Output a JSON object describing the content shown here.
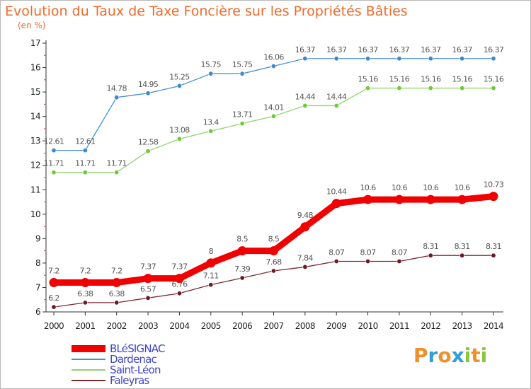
{
  "title": "Evolution du Taux de Taxe Foncière sur les Propriétés Bâties",
  "subtitle": "(en %)",
  "logo": {
    "letters": [
      {
        "char": "P",
        "color": "#f0902a"
      },
      {
        "char": "r",
        "color": "#2e9fd8"
      },
      {
        "char": "o",
        "color": "#f0902a"
      },
      {
        "char": "x",
        "color": "#2e9fd8"
      },
      {
        "char": "i",
        "color": "#8cc63f"
      },
      {
        "char": "t",
        "color": "#f0902a"
      },
      {
        "char": "i",
        "color": "#8cc63f"
      }
    ]
  },
  "chart_data": {
    "type": "line",
    "x": [
      "2000",
      "2001",
      "2002",
      "2003",
      "2004",
      "2005",
      "2006",
      "2007",
      "2008",
      "2009",
      "2010",
      "2011",
      "2012",
      "2013",
      "2014"
    ],
    "ylim": [
      6,
      17
    ],
    "yticks": [
      6,
      7,
      8,
      9,
      10,
      11,
      12,
      13,
      14,
      15,
      16,
      17
    ],
    "grid": false,
    "legend": "bottom-left",
    "series": [
      {
        "name": "Dardenac",
        "color": "#4a8fd0",
        "marker": "#3f86d6",
        "width": 1.3,
        "labels": true,
        "values": [
          12.61,
          12.61,
          14.78,
          14.95,
          15.25,
          15.75,
          15.75,
          16.06,
          16.37,
          16.37,
          16.37,
          16.37,
          16.37,
          16.37,
          16.37
        ]
      },
      {
        "name": "Saint-Léon",
        "color": "#8fd46a",
        "marker": "#72c83a",
        "width": 1.3,
        "labels": true,
        "values": [
          11.71,
          11.71,
          11.71,
          12.58,
          13.08,
          13.4,
          13.71,
          14.01,
          14.44,
          14.44,
          15.16,
          15.16,
          15.16,
          15.16,
          15.16
        ]
      },
      {
        "name": "Faleyras",
        "color": "#7a2a32",
        "marker": "#6a1a22",
        "width": 1.3,
        "labels": true,
        "values": [
          6.2,
          6.38,
          6.38,
          6.57,
          6.76,
          7.11,
          7.39,
          7.68,
          7.84,
          8.07,
          8.07,
          8.07,
          8.31,
          8.31,
          8.31
        ]
      },
      {
        "name": "BLéSIGNAC",
        "color": "#f00000",
        "marker": "#f00000",
        "width": 9,
        "labels": true,
        "values": [
          7.2,
          7.2,
          7.2,
          7.37,
          7.37,
          8,
          8.5,
          8.5,
          9.48,
          10.44,
          10.6,
          10.6,
          10.6,
          10.6,
          10.73
        ]
      }
    ],
    "legend_order": [
      "BLéSIGNAC",
      "Dardenac",
      "Saint-Léon",
      "Faleyras"
    ]
  }
}
